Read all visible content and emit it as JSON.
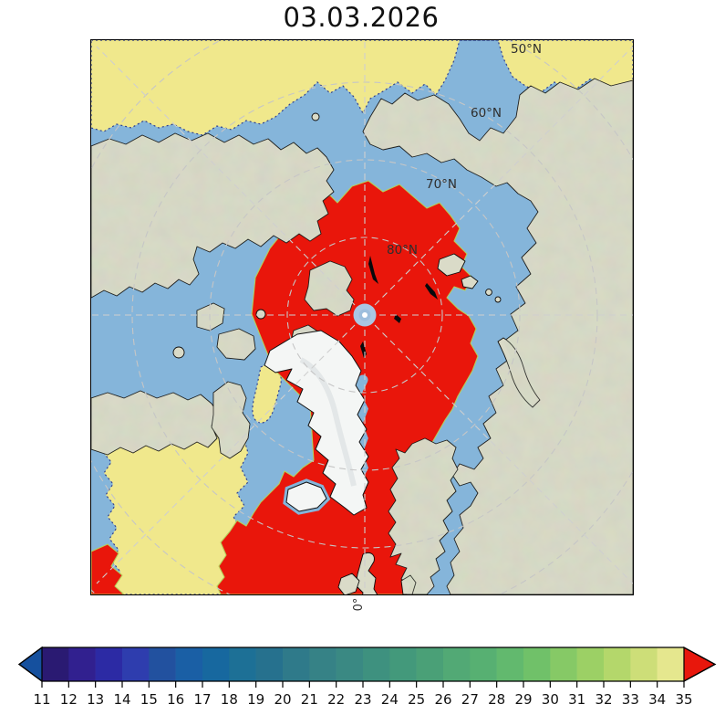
{
  "figure": {
    "title": "03.03.2026"
  },
  "map": {
    "latitude_labels": [
      "50°N",
      "60°N",
      "70°N",
      "80°N"
    ],
    "longitude_label": "0°",
    "colors": {
      "ocean": "#85b5da",
      "land": "#dadbc8",
      "ice_sheet": "#f4f6f5",
      "field_high": "#e9160b",
      "field_pale": "#f0e88c",
      "graticule": "#c6c6c6",
      "pole_marker": "#aac7e3"
    }
  },
  "colorbar": {
    "ticks": [
      11,
      12,
      13,
      14,
      15,
      16,
      17,
      18,
      19,
      20,
      21,
      22,
      23,
      24,
      25,
      26,
      27,
      28,
      29,
      30,
      31,
      32,
      33,
      34,
      35
    ],
    "segment_colors": [
      "#2a1a72",
      "#31208f",
      "#2c2aa4",
      "#2e3dae",
      "#22519f",
      "#1a5fa5",
      "#17689f",
      "#1d7096",
      "#26718e",
      "#2f7a8a",
      "#368286",
      "#3a8983",
      "#3e917f",
      "#43997b",
      "#4aa077",
      "#52a975",
      "#57b072",
      "#62b96e",
      "#70c169",
      "#86c966",
      "#9cd065",
      "#b4d76b",
      "#cdde78",
      "#e5e78e"
    ],
    "under_color": "#15509e",
    "over_color": "#e8170c"
  },
  "chart_data": {
    "type": "heatmap",
    "title": "03.03.2026",
    "colorbar_range": [
      11,
      35
    ],
    "colorbar_ticks": [
      11,
      12,
      13,
      14,
      15,
      16,
      17,
      18,
      19,
      20,
      21,
      22,
      23,
      24,
      25,
      26,
      27,
      28,
      29,
      30,
      31,
      32,
      33,
      34,
      35
    ],
    "extend": "both",
    "graticule_latitude_labels": [
      "50°N",
      "60°N",
      "70°N",
      "80°N"
    ],
    "graticule_longitude_label": "0°"
  }
}
